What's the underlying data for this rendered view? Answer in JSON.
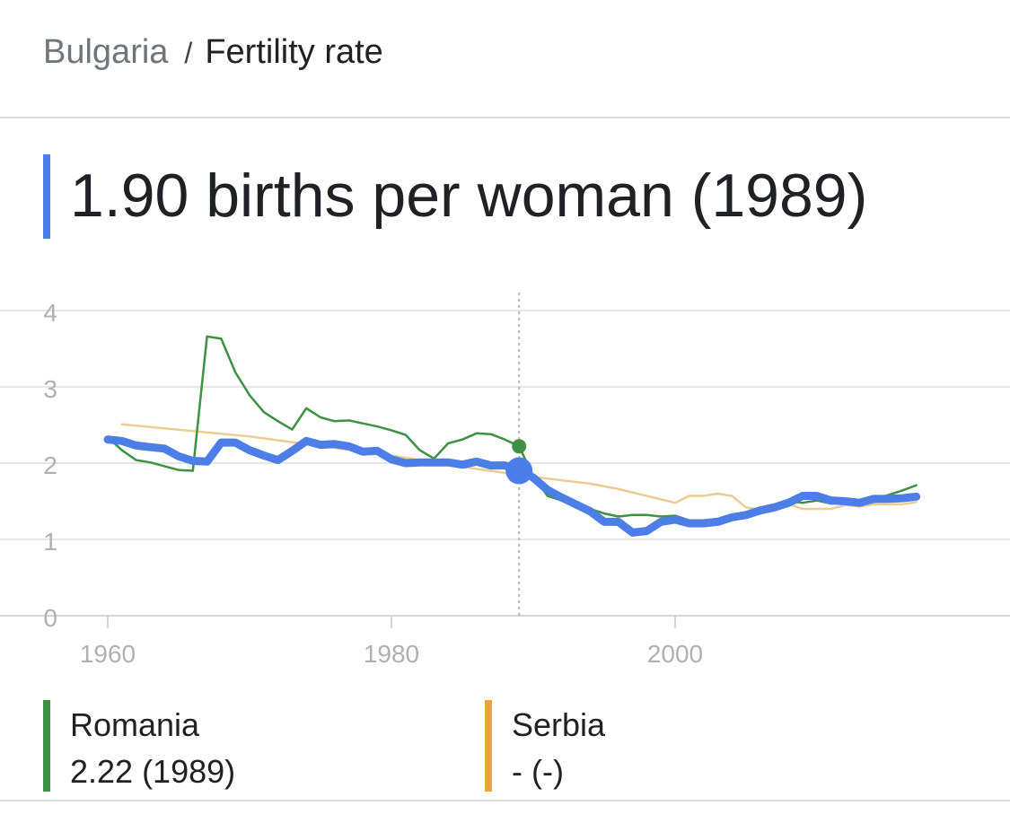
{
  "breadcrumb": {
    "country": "Bulgaria",
    "separator": "/",
    "topic": "Fertility rate"
  },
  "headline": {
    "text": "1.90 births per woman (1989)",
    "accent_color": "#4d7ee8"
  },
  "legend": [
    {
      "name": "Romania",
      "value": "2.22 (1989)",
      "color": "#3e9142"
    },
    {
      "name": "Serbia",
      "value": "- (-)",
      "color": "#e8a33a"
    }
  ],
  "chart_data": {
    "type": "line",
    "title": "",
    "xlabel": "",
    "ylabel": "",
    "xlim": [
      1956,
      2020
    ],
    "ylim": [
      0,
      4
    ],
    "x_ticks": [
      1960,
      1980,
      2000
    ],
    "y_ticks": [
      0,
      1,
      2,
      3,
      4
    ],
    "grid": true,
    "highlight_x": 1989,
    "series": [
      {
        "name": "Bulgaria",
        "color": "#4d7ee8",
        "x": [
          1960,
          1961,
          1962,
          1963,
          1964,
          1965,
          1966,
          1967,
          1968,
          1969,
          1970,
          1971,
          1972,
          1973,
          1974,
          1975,
          1976,
          1977,
          1978,
          1979,
          1980,
          1981,
          1982,
          1983,
          1984,
          1985,
          1986,
          1987,
          1988,
          1989,
          1990,
          1991,
          1992,
          1993,
          1994,
          1995,
          1996,
          1997,
          1998,
          1999,
          2000,
          2001,
          2002,
          2003,
          2004,
          2005,
          2006,
          2007,
          2008,
          2009,
          2010,
          2011,
          2012,
          2013,
          2014,
          2015,
          2016,
          2017
        ],
        "values": [
          2.31,
          2.29,
          2.23,
          2.21,
          2.19,
          2.09,
          2.03,
          2.02,
          2.27,
          2.27,
          2.17,
          2.1,
          2.04,
          2.16,
          2.29,
          2.24,
          2.25,
          2.22,
          2.15,
          2.16,
          2.05,
          2.0,
          2.01,
          2.01,
          2.01,
          1.98,
          2.02,
          1.97,
          1.97,
          1.9,
          1.81,
          1.65,
          1.55,
          1.46,
          1.37,
          1.23,
          1.23,
          1.09,
          1.11,
          1.23,
          1.26,
          1.21,
          1.21,
          1.23,
          1.29,
          1.32,
          1.38,
          1.42,
          1.48,
          1.57,
          1.57,
          1.51,
          1.5,
          1.48,
          1.53,
          1.53,
          1.54,
          1.56
        ]
      },
      {
        "name": "Romania",
        "color": "#3e9142",
        "x": [
          1960,
          1961,
          1962,
          1963,
          1964,
          1965,
          1966,
          1967,
          1968,
          1969,
          1970,
          1971,
          1972,
          1973,
          1974,
          1975,
          1976,
          1977,
          1978,
          1979,
          1980,
          1981,
          1982,
          1983,
          1984,
          1985,
          1986,
          1987,
          1988,
          1989,
          1990,
          1991,
          1992,
          1993,
          1994,
          1995,
          1996,
          1997,
          1998,
          1999,
          2000,
          2001,
          2002,
          2003,
          2004,
          2005,
          2006,
          2007,
          2008,
          2009,
          2010,
          2011,
          2012,
          2013,
          2014,
          2015,
          2016,
          2017
        ],
        "values": [
          2.34,
          2.17,
          2.04,
          2.01,
          1.96,
          1.91,
          1.9,
          3.66,
          3.63,
          3.19,
          2.89,
          2.67,
          2.55,
          2.44,
          2.72,
          2.6,
          2.55,
          2.56,
          2.52,
          2.48,
          2.43,
          2.37,
          2.17,
          2.06,
          2.26,
          2.31,
          2.39,
          2.38,
          2.31,
          2.22,
          1.83,
          1.57,
          1.51,
          1.44,
          1.4,
          1.34,
          1.3,
          1.32,
          1.32,
          1.3,
          1.31,
          1.25,
          1.25,
          1.27,
          1.29,
          1.32,
          1.39,
          1.45,
          1.5,
          1.48,
          1.51,
          1.47,
          1.52,
          1.46,
          1.52,
          1.58,
          1.64,
          1.71
        ]
      },
      {
        "name": "Serbia",
        "color": "#eccd8f",
        "x": [
          1961,
          1970,
          1980,
          1985,
          1990,
          1994,
          1996,
          2000,
          2001,
          2002,
          2003,
          2004,
          2005,
          2006,
          2007,
          2008,
          2009,
          2010,
          2011,
          2012,
          2013,
          2014,
          2015,
          2016,
          2017
        ],
        "values": [
          2.51,
          2.35,
          2.1,
          1.95,
          1.82,
          1.73,
          1.66,
          1.48,
          1.57,
          1.57,
          1.6,
          1.57,
          1.42,
          1.39,
          1.41,
          1.46,
          1.4,
          1.4,
          1.4,
          1.45,
          1.43,
          1.46,
          1.46,
          1.46,
          1.49
        ]
      }
    ]
  }
}
